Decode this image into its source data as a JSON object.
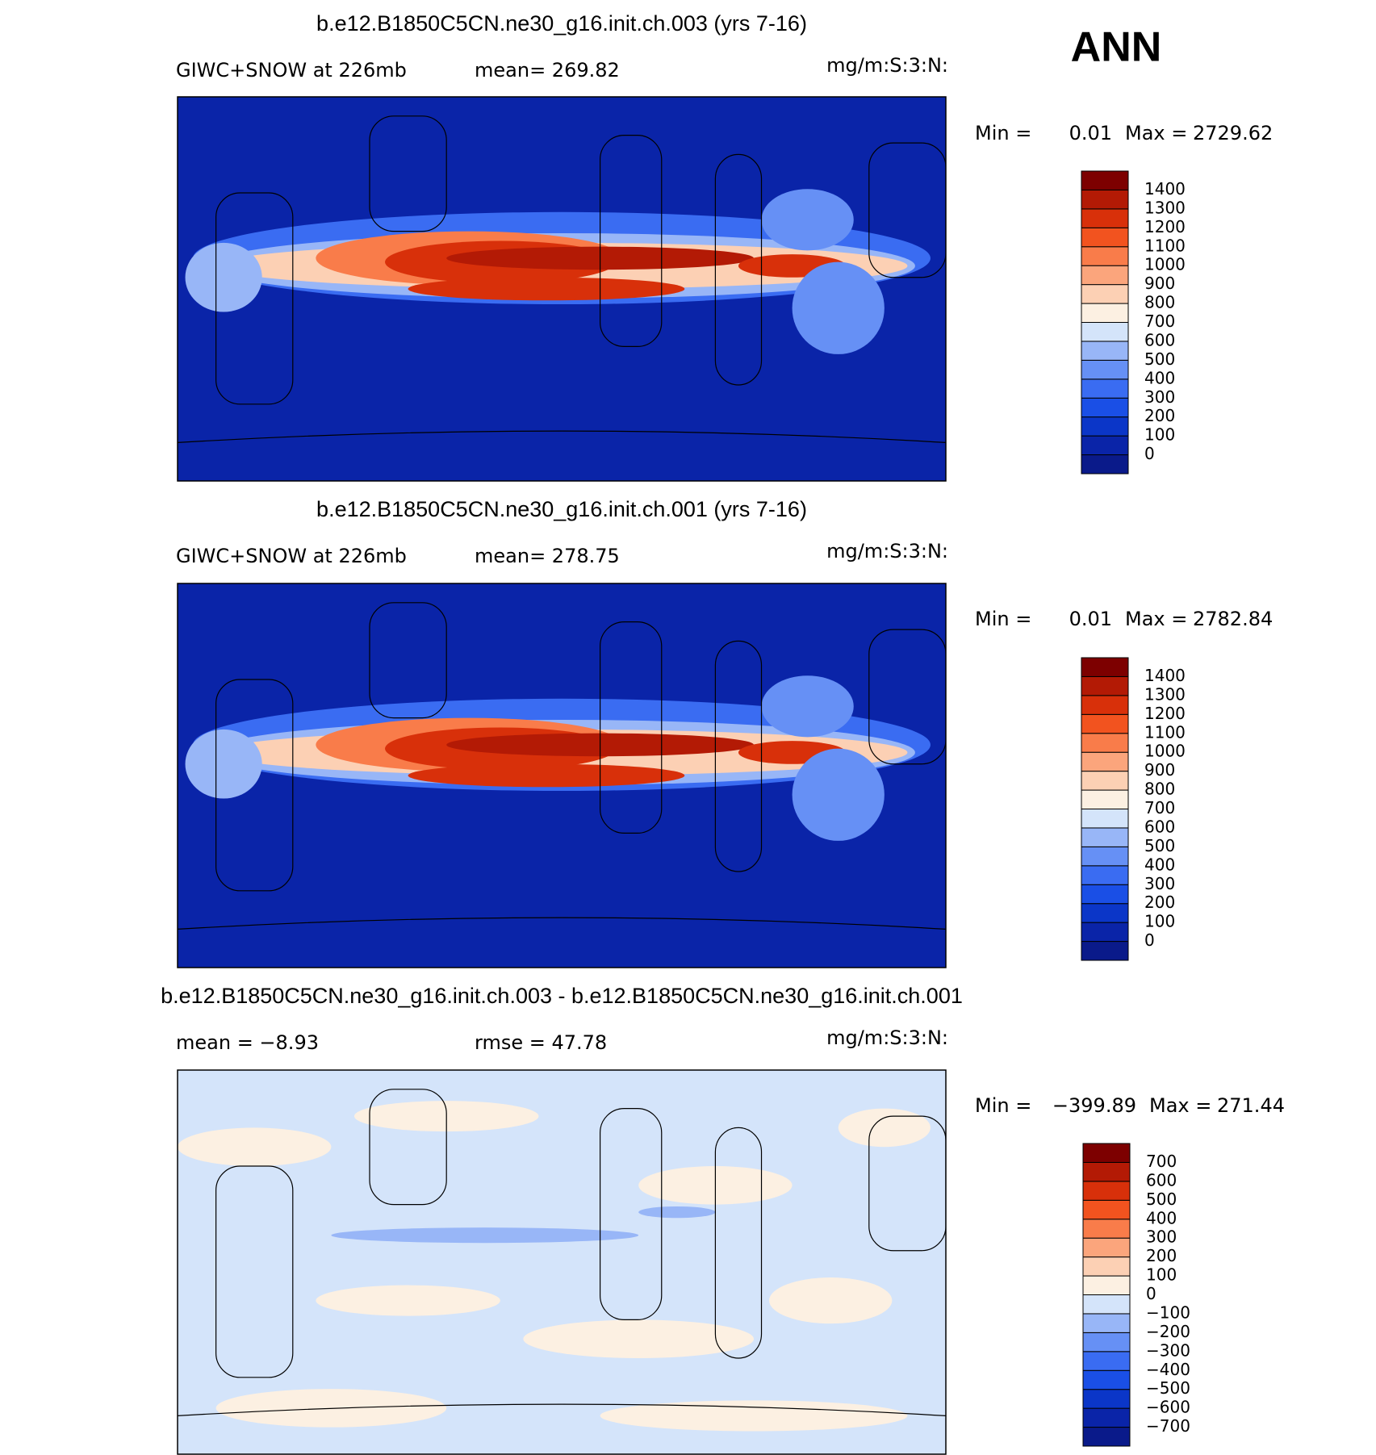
{
  "figure_label": "ANN",
  "panels": [
    {
      "title": "b.e12.B1850C5CN.ne30_g16.init.ch.003 (yrs 7-16)",
      "left_text": "GIWC+SNOW at 226mb",
      "middle_text": "mean= 269.82",
      "units": "mg/m:S:3:N:",
      "min_text": "Min =",
      "min": "0.01",
      "max_text": "Max =",
      "max": "2729.62",
      "colorbar": [
        "0",
        "100",
        "200",
        "300",
        "400",
        "500",
        "600",
        "700",
        "800",
        "900",
        "1000",
        "1100",
        "1200",
        "1300",
        "1400"
      ]
    },
    {
      "title": "b.e12.B1850C5CN.ne30_g16.init.ch.001 (yrs 7-16)",
      "left_text": "GIWC+SNOW at 226mb",
      "middle_text": "mean= 278.75",
      "units": "mg/m:S:3:N:",
      "min_text": "Min =",
      "min": "0.01",
      "max_text": "Max =",
      "max": "2782.84",
      "colorbar": [
        "0",
        "100",
        "200",
        "300",
        "400",
        "500",
        "600",
        "700",
        "800",
        "900",
        "1000",
        "1100",
        "1200",
        "1300",
        "1400"
      ]
    },
    {
      "title": "b.e12.B1850C5CN.ne30_g16.init.ch.003 - b.e12.B1850C5CN.ne30_g16.init.ch.001",
      "left_text": "mean =   −8.93",
      "middle_text": "rmse =   47.78",
      "units": "mg/m:S:3:N:",
      "min_text": "Min =",
      "min": "−399.89",
      "max_text": "Max =",
      "max": "271.44",
      "colorbar": [
        "−700",
        "−600",
        "−500",
        "−400",
        "−300",
        "−200",
        "−100",
        "0",
        "100",
        "200",
        "300",
        "400",
        "500",
        "600",
        "700"
      ]
    }
  ]
}
